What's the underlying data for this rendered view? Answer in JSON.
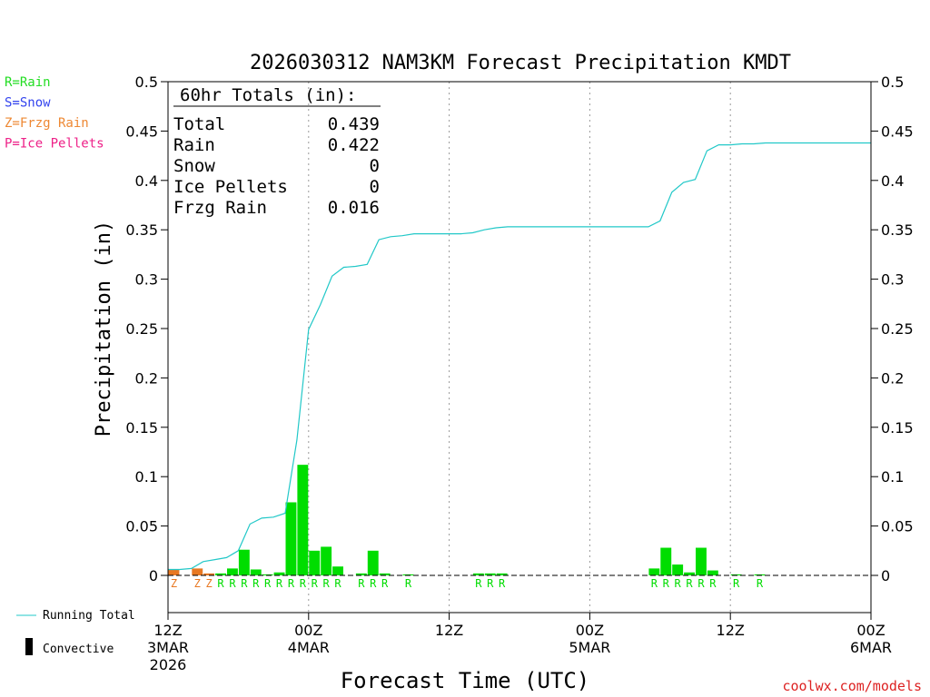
{
  "chart_data": {
    "type": "bar",
    "title": "2026030312 NAM3KM Forecast Precipitation KMDT",
    "xlabel": "Forecast Time (UTC)",
    "ylabel": "Precipitation (in)",
    "ylim": [
      0,
      0.5
    ],
    "xlim_hours": [
      0,
      60
    ],
    "yticks": [
      0,
      0.05,
      0.1,
      0.15,
      0.2,
      0.25,
      0.3,
      0.35,
      0.4,
      0.45,
      0.5
    ],
    "ytick_labels": [
      "0",
      "0.05",
      "0.1",
      "0.15",
      "0.2",
      "0.25",
      "0.3",
      "0.35",
      "0.4",
      "0.45",
      "0.5"
    ],
    "xticks": [
      {
        "hour": 0,
        "lines": [
          "12Z",
          "3MAR",
          "2026"
        ]
      },
      {
        "hour": 12,
        "lines": [
          "00Z",
          "4MAR"
        ]
      },
      {
        "hour": 24,
        "lines": [
          "12Z"
        ]
      },
      {
        "hour": 36,
        "lines": [
          "00Z",
          "5MAR"
        ]
      },
      {
        "hour": 48,
        "lines": [
          "12Z"
        ]
      },
      {
        "hour": 60,
        "lines": [
          "00Z",
          "6MAR"
        ]
      }
    ],
    "bars": [
      {
        "hour": 1,
        "value": 0.006,
        "type": "Z"
      },
      {
        "hour": 3,
        "value": 0.007,
        "type": "Z"
      },
      {
        "hour": 4,
        "value": 0.002,
        "type": "Z"
      },
      {
        "hour": 5,
        "value": 0.002,
        "type": "R"
      },
      {
        "hour": 6,
        "value": 0.007,
        "type": "R"
      },
      {
        "hour": 7,
        "value": 0.026,
        "type": "R"
      },
      {
        "hour": 8,
        "value": 0.006,
        "type": "R"
      },
      {
        "hour": 9,
        "value": 0.001,
        "type": "R"
      },
      {
        "hour": 10,
        "value": 0.003,
        "type": "R"
      },
      {
        "hour": 11,
        "value": 0.074,
        "type": "R"
      },
      {
        "hour": 12,
        "value": 0.112,
        "type": "R"
      },
      {
        "hour": 13,
        "value": 0.025,
        "type": "R"
      },
      {
        "hour": 14,
        "value": 0.029,
        "type": "R"
      },
      {
        "hour": 15,
        "value": 0.009,
        "type": "R"
      },
      {
        "hour": 17,
        "value": 0.002,
        "type": "R"
      },
      {
        "hour": 18,
        "value": 0.025,
        "type": "R"
      },
      {
        "hour": 19,
        "value": 0.002,
        "type": "R"
      },
      {
        "hour": 21,
        "value": 0.001,
        "type": "R"
      },
      {
        "hour": 27,
        "value": 0.002,
        "type": "R"
      },
      {
        "hour": 28,
        "value": 0.002,
        "type": "R"
      },
      {
        "hour": 29,
        "value": 0.002,
        "type": "R"
      },
      {
        "hour": 42,
        "value": 0.007,
        "type": "R"
      },
      {
        "hour": 43,
        "value": 0.028,
        "type": "R"
      },
      {
        "hour": 44,
        "value": 0.011,
        "type": "R"
      },
      {
        "hour": 45,
        "value": 0.003,
        "type": "R"
      },
      {
        "hour": 46,
        "value": 0.028,
        "type": "R"
      },
      {
        "hour": 47,
        "value": 0.005,
        "type": "R"
      },
      {
        "hour": 49,
        "value": 0.001,
        "type": "R"
      },
      {
        "hour": 51,
        "value": 0.001,
        "type": "R"
      }
    ],
    "running_total": [
      [
        0,
        0.006
      ],
      [
        1,
        0.006
      ],
      [
        2,
        0.007
      ],
      [
        3,
        0.014
      ],
      [
        4,
        0.016
      ],
      [
        5,
        0.018
      ],
      [
        6,
        0.025
      ],
      [
        7,
        0.052
      ],
      [
        8,
        0.058
      ],
      [
        9,
        0.059
      ],
      [
        10,
        0.063
      ],
      [
        11,
        0.137
      ],
      [
        12,
        0.249
      ],
      [
        13,
        0.274
      ],
      [
        14,
        0.303
      ],
      [
        15,
        0.312
      ],
      [
        16,
        0.313
      ],
      [
        17,
        0.315
      ],
      [
        18,
        0.34
      ],
      [
        19,
        0.343
      ],
      [
        20,
        0.344
      ],
      [
        21,
        0.346
      ],
      [
        22,
        0.346
      ],
      [
        23,
        0.346
      ],
      [
        24,
        0.346
      ],
      [
        25,
        0.346
      ],
      [
        26,
        0.347
      ],
      [
        27,
        0.35
      ],
      [
        28,
        0.352
      ],
      [
        29,
        0.353
      ],
      [
        30,
        0.353
      ],
      [
        35,
        0.353
      ],
      [
        40,
        0.353
      ],
      [
        41,
        0.353
      ],
      [
        42,
        0.359
      ],
      [
        43,
        0.388
      ],
      [
        44,
        0.398
      ],
      [
        45,
        0.401
      ],
      [
        46,
        0.43
      ],
      [
        47,
        0.436
      ],
      [
        48,
        0.436
      ],
      [
        49,
        0.437
      ],
      [
        50,
        0.437
      ],
      [
        51,
        0.438
      ],
      [
        55,
        0.438
      ],
      [
        60,
        0.438
      ]
    ],
    "ptype_labels": [
      {
        "hour": 1,
        "label": "Z"
      },
      {
        "hour": 3,
        "label": "Z"
      },
      {
        "hour": 4,
        "label": "Z"
      },
      {
        "hour": 5,
        "label": "R"
      },
      {
        "hour": 6,
        "label": "R"
      },
      {
        "hour": 7,
        "label": "R"
      },
      {
        "hour": 8,
        "label": "R"
      },
      {
        "hour": 9,
        "label": "R"
      },
      {
        "hour": 10,
        "label": "R"
      },
      {
        "hour": 11,
        "label": "R"
      },
      {
        "hour": 12,
        "label": "R"
      },
      {
        "hour": 13,
        "label": "R"
      },
      {
        "hour": 14,
        "label": "R"
      },
      {
        "hour": 15,
        "label": "R"
      },
      {
        "hour": 17,
        "label": "R"
      },
      {
        "hour": 18,
        "label": "R"
      },
      {
        "hour": 19,
        "label": "R"
      },
      {
        "hour": 21,
        "label": "R"
      },
      {
        "hour": 27,
        "label": "R"
      },
      {
        "hour": 28,
        "label": "R"
      },
      {
        "hour": 29,
        "label": "R"
      },
      {
        "hour": 42,
        "label": "R"
      },
      {
        "hour": 43,
        "label": "R"
      },
      {
        "hour": 44,
        "label": "R"
      },
      {
        "hour": 45,
        "label": "R"
      },
      {
        "hour": 46,
        "label": "R"
      },
      {
        "hour": 47,
        "label": "R"
      },
      {
        "hour": 49,
        "label": "R"
      },
      {
        "hour": 51,
        "label": "R"
      }
    ],
    "totals": {
      "heading": "60hr Totals (in):",
      "rows": [
        {
          "label": "Total",
          "value": "0.439"
        },
        {
          "label": "Rain",
          "value": "0.422"
        },
        {
          "label": "Snow",
          "value": "0"
        },
        {
          "label": "Ice Pellets",
          "value": "0"
        },
        {
          "label": "Frzg Rain",
          "value": "0.016"
        }
      ]
    },
    "ptype_legend": [
      {
        "text": "R=Rain",
        "color": "#22dd22"
      },
      {
        "text": "S=Snow",
        "color": "#3344ee"
      },
      {
        "text": "Z=Frzg Rain",
        "color": "#ee8833"
      },
      {
        "text": "P=Ice Pellets",
        "color": "#ee2288"
      }
    ],
    "series_legend": {
      "running_total": "Running Total",
      "convective": "Convective"
    },
    "colors": {
      "rain": "#00dd00",
      "frzg_rain": "#e87822",
      "running_total": "#22c8c8",
      "convective": "#000000",
      "grid": "#999999"
    }
  },
  "credit": "coolwx.com/models"
}
